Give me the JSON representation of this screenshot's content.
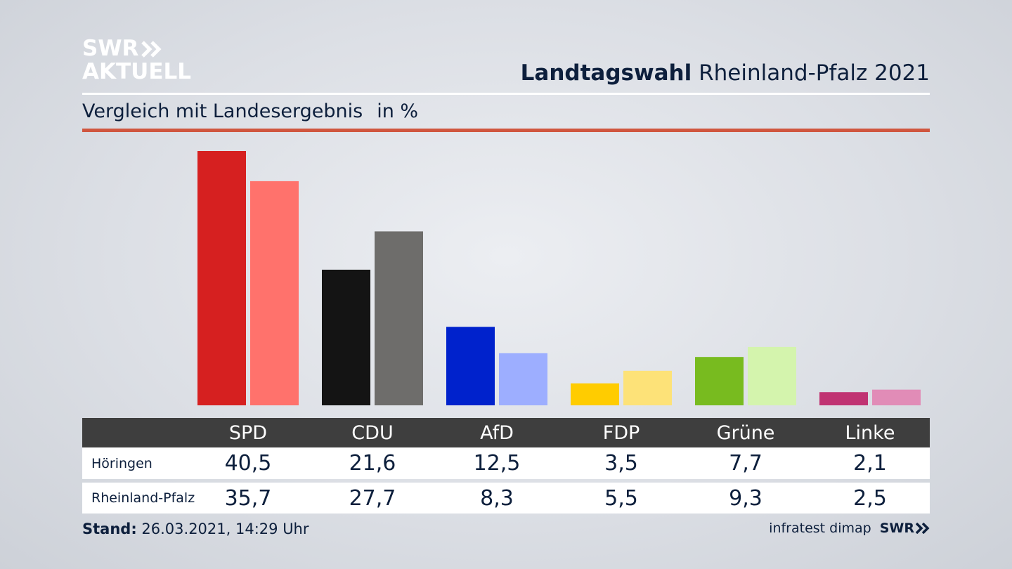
{
  "logo": {
    "line1": "SWR",
    "line2": "AKTUELL"
  },
  "header": {
    "title_bold": "Landtagswahl",
    "title_rest": "Rheinland-Pfalz 2021",
    "subtitle": "Vergleich mit Landesergebnis",
    "unit": "in %"
  },
  "chart_data": {
    "type": "bar",
    "categories": [
      "SPD",
      "CDU",
      "AfD",
      "FDP",
      "Grüne",
      "Linke"
    ],
    "series": [
      {
        "name": "Höringen",
        "values": [
          40.5,
          21.6,
          12.5,
          3.5,
          7.7,
          2.1
        ],
        "colors": [
          "#d62020",
          "#141414",
          "#0022cc",
          "#ffcc00",
          "#78bb1f",
          "#c03372"
        ]
      },
      {
        "name": "Rheinland-Pfalz",
        "values": [
          35.7,
          27.7,
          8.3,
          5.5,
          9.3,
          2.5
        ],
        "colors": [
          "#ff726c",
          "#6e6d6b",
          "#9daeff",
          "#fde278",
          "#d4f4ad",
          "#e18cb7"
        ]
      }
    ],
    "ylim": [
      0,
      40.5
    ],
    "grid": false,
    "legend": "table-below"
  },
  "table": {
    "rows": [
      {
        "label": "Höringen",
        "values": [
          "40,5",
          "21,6",
          "12,5",
          "3,5",
          "7,7",
          "2,1"
        ]
      },
      {
        "label": "Rheinland-Pfalz",
        "values": [
          "35,7",
          "27,7",
          "8,3",
          "5,5",
          "9,3",
          "2,5"
        ]
      }
    ]
  },
  "footer": {
    "stand_label": "Stand:",
    "stand_value": "26.03.2021, 14:29 Uhr",
    "source": "infratest dimap",
    "brand": "SWR"
  }
}
